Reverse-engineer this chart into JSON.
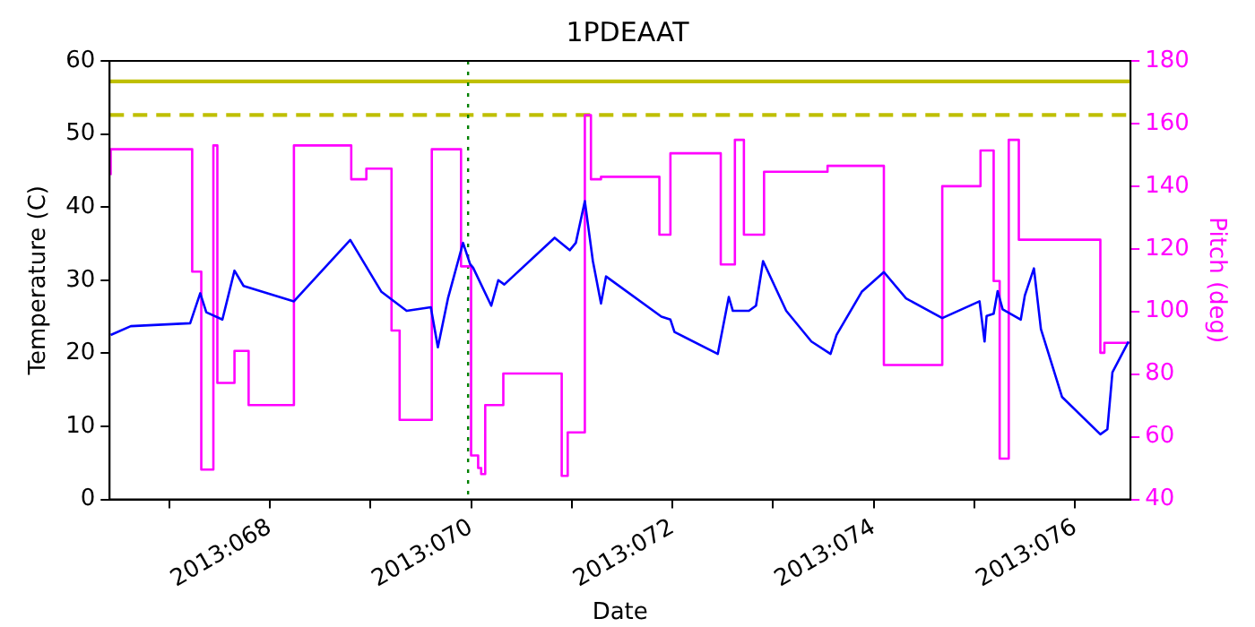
{
  "chart_data": {
    "type": "line",
    "title": "1PDEAAT",
    "xlabel": "Date",
    "ylabel": "Temperature (C)",
    "y2label": "Pitch (deg)",
    "xlim": [
      "2013-03-07T09:50",
      "2013-03-17T13:12"
    ],
    "xticks": [
      {
        "value": "2013-03-08",
        "label": null
      },
      {
        "value": "2013-03-09",
        "label": "2013:068"
      },
      {
        "value": "2013-03-10",
        "label": null
      },
      {
        "value": "2013-03-11",
        "label": "2013:070"
      },
      {
        "value": "2013-03-12",
        "label": null
      },
      {
        "value": "2013-03-13",
        "label": "2013:072"
      },
      {
        "value": "2013-03-14",
        "label": null
      },
      {
        "value": "2013-03-15",
        "label": "2013:074"
      },
      {
        "value": "2013-03-16",
        "label": null
      },
      {
        "value": "2013-03-17",
        "label": "2013:076"
      }
    ],
    "ylim": [
      0,
      60
    ],
    "yticks": [
      0,
      10,
      20,
      30,
      40,
      50,
      60
    ],
    "y2lim": [
      40,
      180
    ],
    "y2ticks": [
      40,
      60,
      80,
      100,
      120,
      140,
      160,
      180
    ],
    "series": [
      {
        "color": "#0000ff",
        "x": [
          "2013-03-07T10:05",
          "2013-03-07T14:53",
          "2013-03-08T05:02",
          "2013-03-08T07:26",
          "2013-03-08T08:53",
          "2013-03-08T12:43",
          "2013-03-08T15:36",
          "2013-03-08T17:46",
          "2013-03-09T05:46",
          "2013-03-09T19:12",
          "2013-03-10T02:38",
          "2013-03-10T08:38",
          "2013-03-10T14:24",
          "2013-03-10T16:05",
          "2013-03-10T18:29",
          "2013-03-10T22:05",
          "2013-03-10T23:46",
          "2013-03-11T00:29",
          "2013-03-11T04:48",
          "2013-03-11T06:29",
          "2013-03-11T07:55",
          "2013-03-11T19:55",
          "2013-03-11T23:31",
          "2013-03-12T00:58",
          "2013-03-12T03:07",
          "2013-03-12T05:02",
          "2013-03-12T06:58",
          "2013-03-12T08:10",
          "2013-03-12T21:22",
          "2013-03-12T23:31",
          "2013-03-13T00:29",
          "2013-03-13T10:48",
          "2013-03-13T13:26",
          "2013-03-13T14:24",
          "2013-03-13T18:14",
          "2013-03-13T19:55",
          "2013-03-13T21:36",
          "2013-03-14T03:07",
          "2013-03-14T09:07",
          "2013-03-14T13:41",
          "2013-03-14T15:07",
          "2013-03-14T21:07",
          "2013-03-15T02:24",
          "2013-03-15T07:41",
          "2013-03-15T16:19",
          "2013-03-16T01:12",
          "2013-03-16T02:24",
          "2013-03-16T02:53",
          "2013-03-16T04:34",
          "2013-03-16T05:31",
          "2013-03-16T06:43",
          "2013-03-16T11:02",
          "2013-03-16T12:00",
          "2013-03-16T14:10",
          "2013-03-16T15:50",
          "2013-03-16T20:53",
          "2013-03-17T06:00",
          "2013-03-17T07:41",
          "2013-03-17T08:53",
          "2013-03-17T12:43"
        ],
        "values": [
          22.5,
          23.7,
          24.1,
          28.2,
          25.6,
          24.6,
          31.3,
          29.2,
          27.1,
          35.5,
          28.4,
          25.8,
          26.3,
          20.8,
          27.5,
          35.1,
          32.2,
          31.7,
          26.5,
          30.0,
          29.4,
          35.8,
          34.1,
          35.1,
          40.8,
          32.6,
          26.8,
          30.5,
          25.0,
          24.6,
          22.9,
          19.9,
          27.7,
          25.8,
          25.8,
          26.5,
          32.6,
          25.8,
          21.6,
          19.9,
          22.5,
          28.4,
          31.1,
          27.5,
          24.8,
          27.1,
          21.6,
          25.1,
          25.4,
          28.5,
          26.0,
          24.6,
          27.9,
          31.6,
          23.3,
          14.0,
          8.9,
          9.6,
          17.4,
          21.6
        ]
      },
      {
        "type": "step",
        "axis": "y2",
        "color": "#ff00ff",
        "x": [
          "2013-03-07T10:05",
          "2013-03-08T05:31",
          "2013-03-08T07:41",
          "2013-03-08T10:34",
          "2013-03-08T11:31",
          "2013-03-08T15:36",
          "2013-03-08T18:58",
          "2013-03-09T05:46",
          "2013-03-09T19:26",
          "2013-03-09T23:02",
          "2013-03-10T05:02",
          "2013-03-10T06:58",
          "2013-03-10T14:38",
          "2013-03-10T21:36",
          "2013-03-11T00:00",
          "2013-03-11T01:41",
          "2013-03-11T02:24",
          "2013-03-11T03:22",
          "2013-03-11T07:41",
          "2013-03-11T21:36",
          "2013-03-11T23:02",
          "2013-03-12T03:07",
          "2013-03-12T04:34",
          "2013-03-12T06:58",
          "2013-03-12T20:53",
          "2013-03-12T23:31",
          "2013-03-13T11:31",
          "2013-03-13T14:53",
          "2013-03-13T17:02",
          "2013-03-13T21:50",
          "2013-03-14T12:58",
          "2013-03-15T02:24",
          "2013-03-15T16:19",
          "2013-03-16T01:26",
          "2013-03-16T04:34",
          "2013-03-16T06:00",
          "2013-03-16T08:10",
          "2013-03-16T10:34",
          "2013-03-17T06:00",
          "2013-03-17T06:58",
          "2013-03-17T12:00",
          "2013-03-17T13:12"
        ],
        "values": [
          143.5,
          151.8,
          112.7,
          49.5,
          153,
          77.2,
          87.4,
          70.1,
          153,
          142.2,
          145.6,
          93.9,
          65.4,
          151.8,
          114.4,
          54,
          50,
          48.1,
          70.1,
          80.2,
          47.5,
          61.4,
          162.7,
          142.2,
          143,
          124.5,
          150.5,
          115,
          154.8,
          124.5,
          144.6,
          146.5,
          82.9,
          140,
          151.4,
          109.7,
          53,
          154.8,
          122.9,
          86.8,
          90,
          90
        ]
      }
    ],
    "ref_lines": [
      {
        "axis": "y",
        "value": 57.2,
        "color": "#bfbf00",
        "line_style": "solid"
      },
      {
        "axis": "y",
        "value": 52.6,
        "color": "#bfbf00",
        "line_style": "dashed"
      },
      {
        "axis": "x",
        "value": "2013-03-10T23:17",
        "color": "#008000",
        "line_style": "dotted"
      }
    ]
  }
}
